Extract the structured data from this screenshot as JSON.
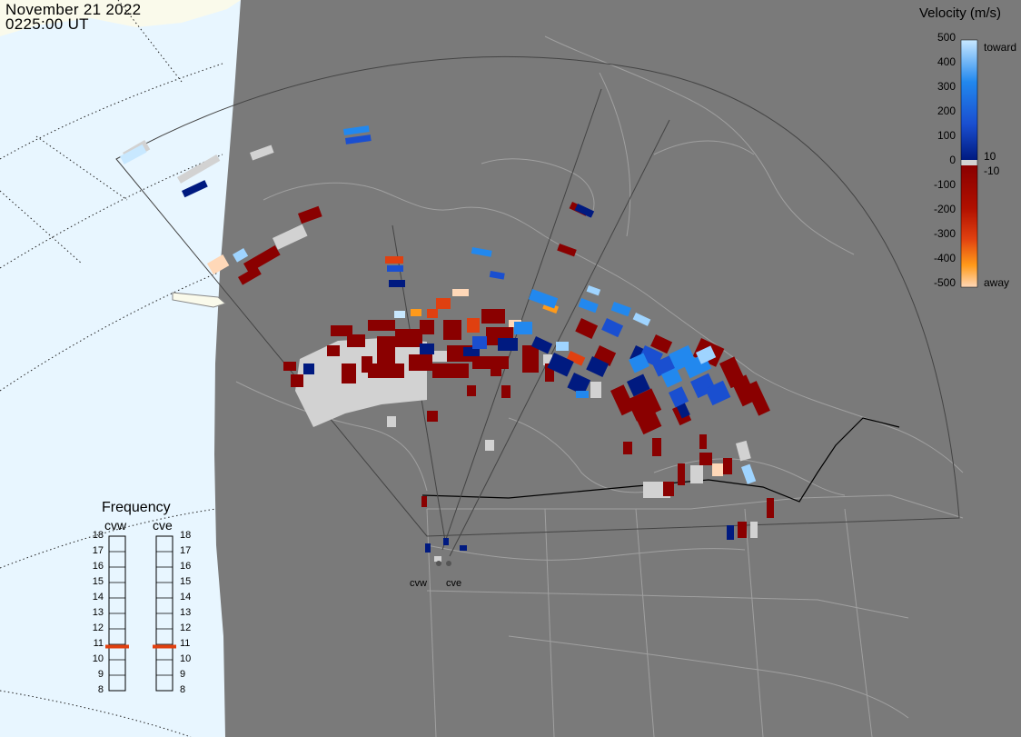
{
  "header": {
    "date": "November  21 2022",
    "time": "0225:00 UT"
  },
  "velocity_scale": {
    "title": "Velocity (m/s)",
    "ticks": [
      "500",
      "400",
      "300",
      "200",
      "100",
      "10",
      "0",
      "-10",
      "-100",
      "-200",
      "-300",
      "-400",
      "-500"
    ],
    "toward_label": "toward",
    "away_label": "away",
    "colors": {
      "toward_high": "#c8e8ff",
      "toward_mid": "#2288ee",
      "toward_low": "#001a80",
      "ground_scatter": "#d2d2d2",
      "away_low": "#8a0000",
      "away_mid": "#e04010",
      "away_high": "#ffd8b8"
    }
  },
  "frequency_panel": {
    "title": "Frequency",
    "radars": [
      "cvw",
      "cve"
    ],
    "scale_ticks": [
      "18",
      "17",
      "16",
      "15",
      "14",
      "13",
      "12",
      "11",
      "10",
      "9",
      "8"
    ],
    "radar_frequencies_mhz": [
      10.85,
      10.85
    ],
    "indicator_color": "#e04010"
  },
  "stations": [
    {
      "name": "cvw",
      "label": "cvw"
    },
    {
      "name": "cve",
      "label": "cve"
    }
  ],
  "map_colors": {
    "night": "#7a7a7a",
    "day_ocean": "#e8f6ff",
    "day_land": "#fafaeb"
  }
}
